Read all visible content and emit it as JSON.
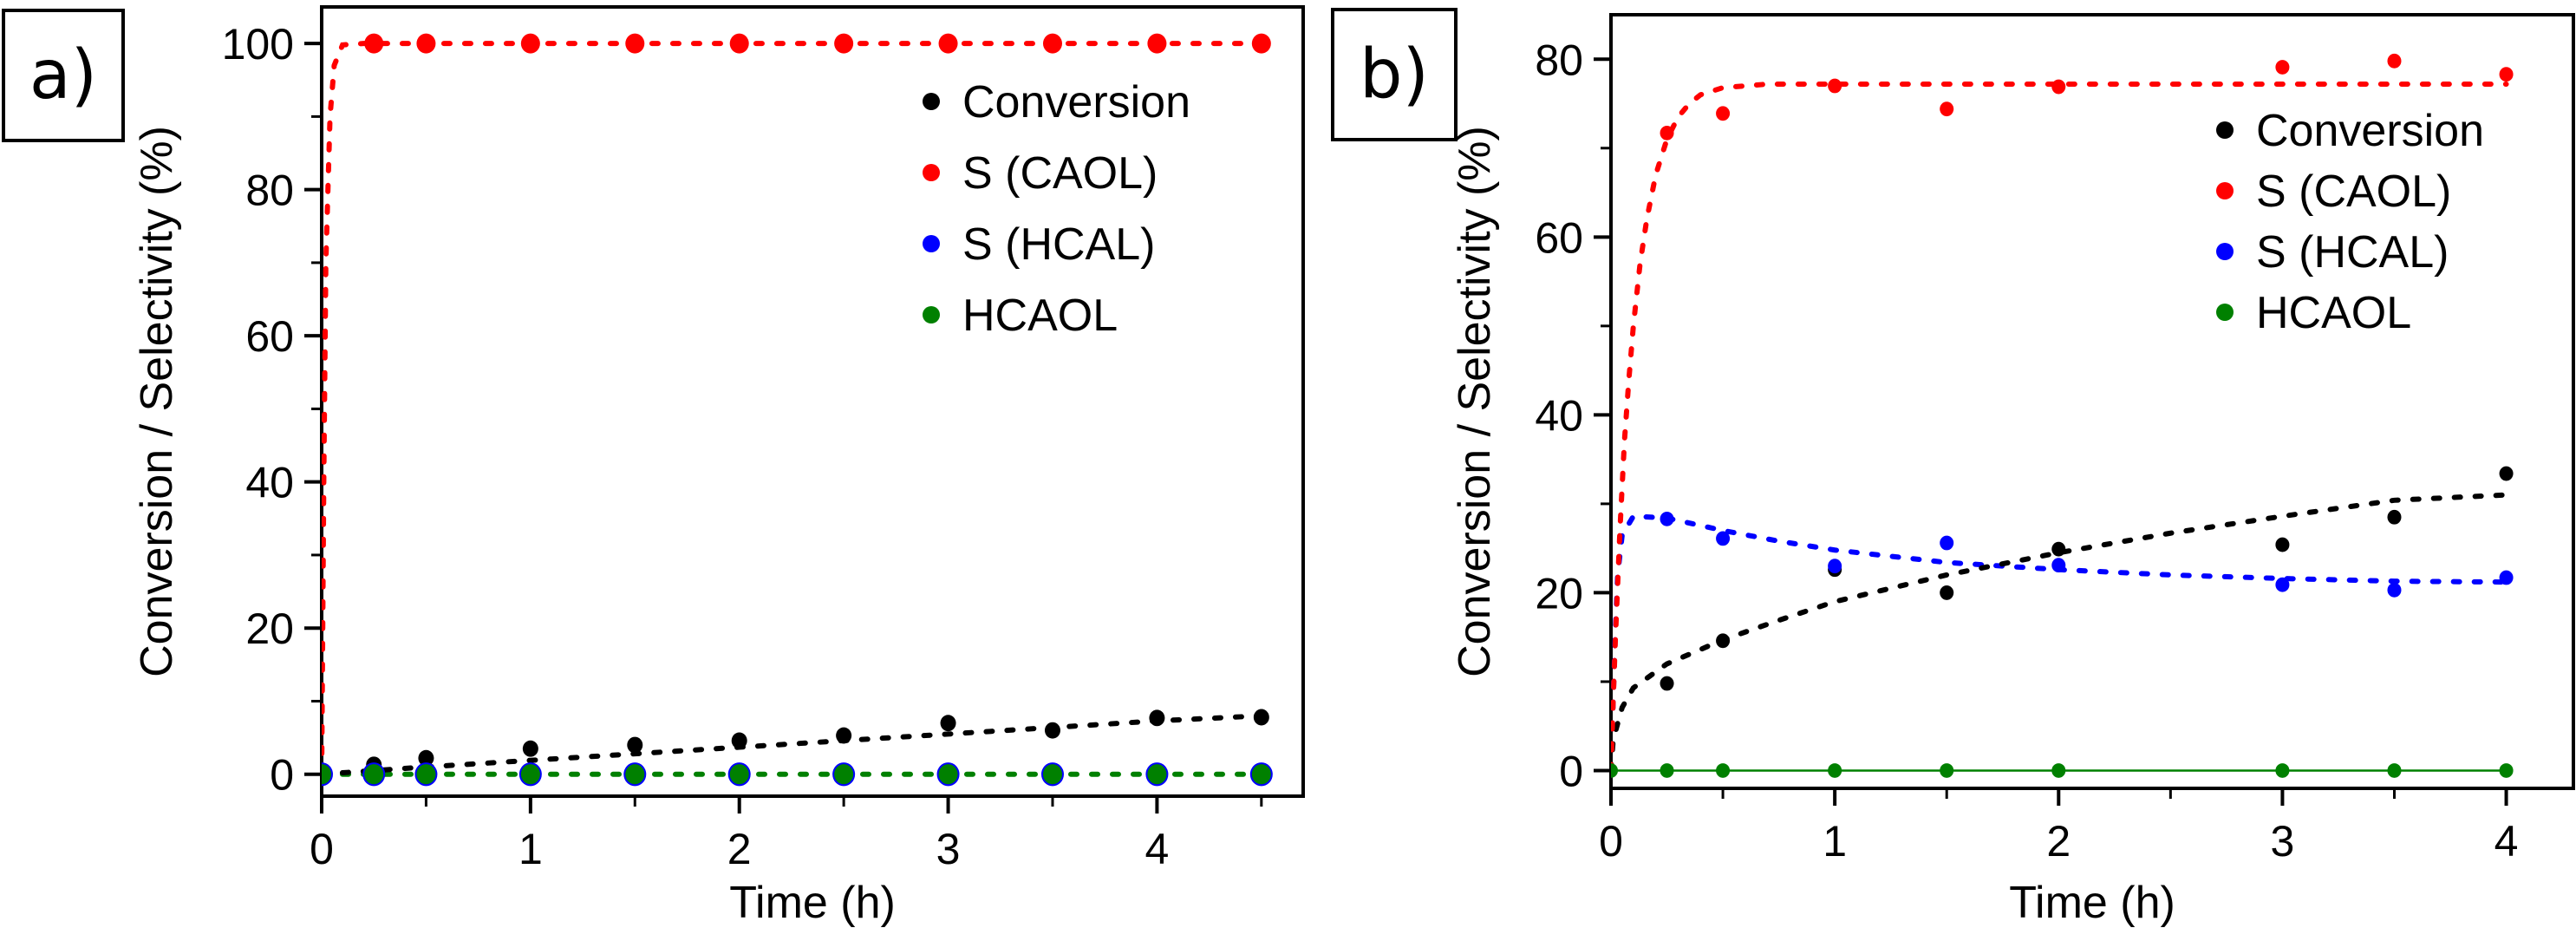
{
  "figure": {
    "panels": [
      {
        "id": "a",
        "label": "a)"
      },
      {
        "id": "b",
        "label": "b)"
      }
    ]
  },
  "colors": {
    "conversion": "#000000",
    "s_caol": "#ff0000",
    "s_hcal": "#0000ff",
    "hcaol": "#008000",
    "axis": "#000000"
  },
  "chart_data": [
    {
      "panel": "a",
      "type": "scatter",
      "title": "",
      "xlabel": "Time (h)",
      "ylabel": "Conversion / Selectivity (%)",
      "xlim": [
        0,
        4.7
      ],
      "ylim": [
        -3,
        105
      ],
      "xticks": [
        0,
        1,
        2,
        3,
        4
      ],
      "xtick_labels": [
        "0",
        "1",
        "2",
        "3",
        "4"
      ],
      "xminor_step": 0.5,
      "yticks": [
        0,
        20,
        40,
        60,
        80,
        100
      ],
      "ytick_labels": [
        "0",
        "20",
        "40",
        "60",
        "80",
        "100"
      ],
      "yminor_step": 10,
      "grid": false,
      "legend_position": "top-right",
      "x": [
        0,
        0.25,
        0.5,
        1,
        1.5,
        2,
        2.5,
        3,
        3.5,
        4,
        4.5
      ],
      "series": [
        {
          "name": "Conversion",
          "key": "conversion",
          "values": [
            0,
            1.3,
            2.2,
            3.5,
            4.0,
            4.6,
            5.3,
            7.0,
            6.0,
            7.7,
            7.8
          ],
          "fit": {
            "style": "dotted",
            "points": [
              [
                0,
                0
              ],
              [
                0.5,
                1.0
              ],
              [
                1,
                1.9
              ],
              [
                1.5,
                2.8
              ],
              [
                2,
                3.7
              ],
              [
                2.5,
                4.6
              ],
              [
                3,
                5.5
              ],
              [
                3.5,
                6.4
              ],
              [
                4,
                7.3
              ],
              [
                4.5,
                8.0
              ]
            ]
          }
        },
        {
          "name": "S (CAOL)",
          "key": "s_caol",
          "values": [
            null,
            100,
            100,
            100,
            100,
            100,
            100,
            100,
            100,
            100,
            100
          ],
          "fit": {
            "style": "dotted",
            "points": [
              [
                0,
                0
              ],
              [
                0.01,
                40
              ],
              [
                0.02,
                70
              ],
              [
                0.04,
                90
              ],
              [
                0.06,
                97
              ],
              [
                0.1,
                99.8
              ],
              [
                0.2,
                100
              ],
              [
                4.5,
                100
              ]
            ]
          }
        },
        {
          "name": "S (HCAL)",
          "key": "s_hcal",
          "values": [
            0,
            0,
            0,
            0,
            0,
            0,
            0,
            0,
            0,
            0,
            0
          ],
          "fit": null
        },
        {
          "name": "HCAOL",
          "key": "hcaol",
          "values": [
            0,
            0,
            0,
            0,
            0,
            0,
            0,
            0,
            0,
            0,
            0
          ],
          "fit": {
            "style": "dotted",
            "points": [
              [
                0,
                0
              ],
              [
                4.5,
                0
              ]
            ]
          }
        }
      ]
    },
    {
      "panel": "b",
      "type": "scatter",
      "title": "",
      "xlabel": "Time (h)",
      "ylabel": "Conversion / Selectivity (%)",
      "xlim": [
        0,
        4.3
      ],
      "ylim": [
        -2,
        85
      ],
      "xticks": [
        0,
        1,
        2,
        3,
        4
      ],
      "xtick_labels": [
        "0",
        "1",
        "2",
        "3",
        "4"
      ],
      "xminor_step": 0.5,
      "yticks": [
        0,
        20,
        40,
        60,
        80
      ],
      "ytick_labels": [
        "0",
        "20",
        "40",
        "60",
        "80"
      ],
      "yminor_step": 10,
      "grid": false,
      "legend_position": "right",
      "x": [
        0,
        0.25,
        0.5,
        1,
        1.5,
        2,
        3,
        3.5,
        4
      ],
      "series": [
        {
          "name": "Conversion",
          "key": "conversion",
          "values": [
            null,
            9.8,
            14.6,
            22.6,
            20.0,
            24.9,
            25.4,
            28.5,
            33.4
          ],
          "fit": {
            "style": "dotted",
            "points": [
              [
                0,
                0
              ],
              [
                0.01,
                3.5
              ],
              [
                0.05,
                7.1
              ],
              [
                0.1,
                9.3
              ],
              [
                0.25,
                12.0
              ],
              [
                0.5,
                14.7
              ],
              [
                0.75,
                16.9
              ],
              [
                1,
                19.0
              ],
              [
                1.5,
                22.0
              ],
              [
                2,
                24.5
              ],
              [
                2.5,
                26.7
              ],
              [
                3,
                28.6
              ],
              [
                3.5,
                30.4
              ],
              [
                4,
                31.0
              ]
            ]
          }
        },
        {
          "name": "S (CAOL)",
          "key": "s_caol",
          "values": [
            null,
            71.7,
            73.9,
            77.0,
            74.4,
            76.9,
            79.1,
            79.8,
            78.3
          ],
          "fit": {
            "style": "dotted",
            "points": [
              [
                0,
                0
              ],
              [
                0.01,
                8
              ],
              [
                0.02,
                15
              ],
              [
                0.04,
                27
              ],
              [
                0.06,
                37
              ],
              [
                0.08,
                44
              ],
              [
                0.1,
                50
              ],
              [
                0.13,
                57
              ],
              [
                0.16,
                62
              ],
              [
                0.2,
                67
              ],
              [
                0.25,
                71
              ],
              [
                0.3,
                73.5
              ],
              [
                0.35,
                75
              ],
              [
                0.4,
                76
              ],
              [
                0.5,
                76.8
              ],
              [
                0.7,
                77.2
              ],
              [
                4,
                77.2
              ]
            ]
          }
        },
        {
          "name": "S (HCAL)",
          "key": "s_hcal",
          "values": [
            null,
            28.3,
            26.1,
            23.0,
            25.6,
            23.1,
            20.9,
            20.3,
            21.7
          ],
          "fit": {
            "style": "dotted",
            "points": [
              [
                0,
                0
              ],
              [
                0.01,
                8
              ],
              [
                0.02,
                16
              ],
              [
                0.03,
                22
              ],
              [
                0.05,
                26.5
              ],
              [
                0.1,
                28.6
              ],
              [
                0.25,
                28.4
              ],
              [
                0.5,
                27.0
              ],
              [
                0.75,
                25.8
              ],
              [
                1,
                24.8
              ],
              [
                1.5,
                23.4
              ],
              [
                2,
                22.6
              ],
              [
                2.5,
                22.0
              ],
              [
                3,
                21.6
              ],
              [
                3.5,
                21.3
              ],
              [
                4,
                21.2
              ]
            ]
          }
        },
        {
          "name": "HCAOL",
          "key": "hcaol",
          "values": [
            0,
            0,
            0,
            0,
            0,
            0,
            0,
            0,
            0
          ],
          "fit": {
            "style": "solid",
            "points": [
              [
                0,
                0
              ],
              [
                4,
                0
              ]
            ]
          }
        }
      ]
    }
  ]
}
